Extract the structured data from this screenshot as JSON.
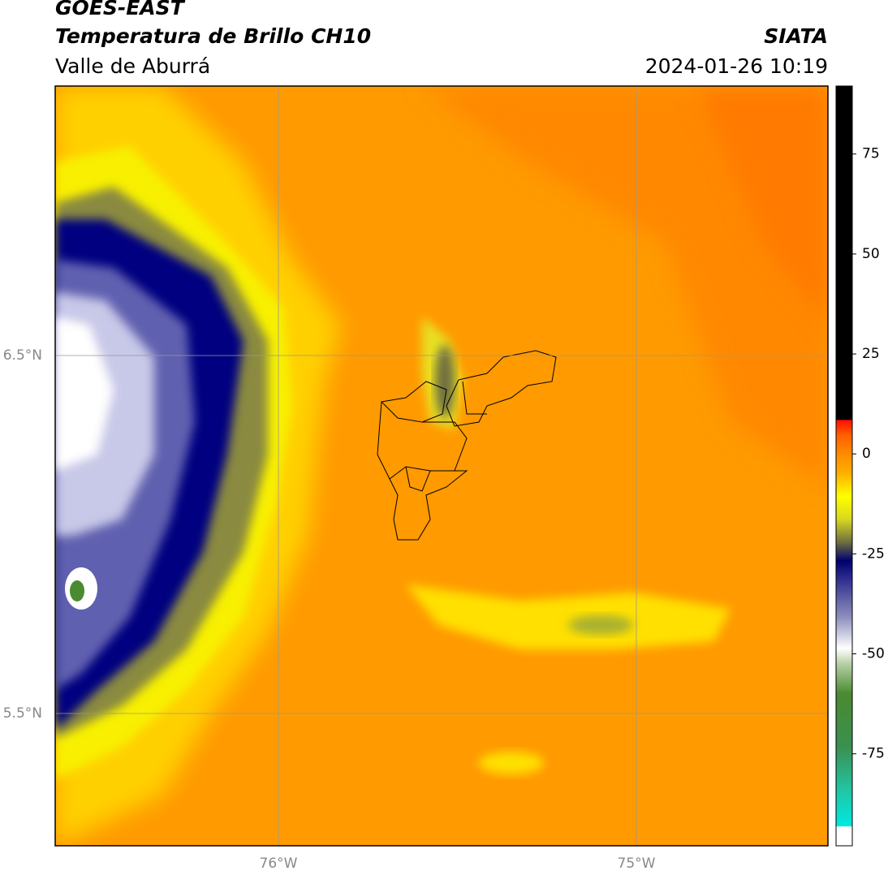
{
  "header": {
    "title": "GOES-EAST",
    "subtitle": "Temperatura de Brillo CH10",
    "region": "Valle de Aburrá",
    "source": "SIATA",
    "datetime": "2024-01-26 10:19"
  },
  "map": {
    "lat_ticks": [
      "6.5°N",
      "5.5°N"
    ],
    "lon_ticks": [
      "76°W",
      "75°W"
    ]
  },
  "colorbar": {
    "range": [
      -98,
      92
    ],
    "ticks": [
      75,
      50,
      25,
      0,
      -25,
      -50,
      -75
    ]
  }
}
